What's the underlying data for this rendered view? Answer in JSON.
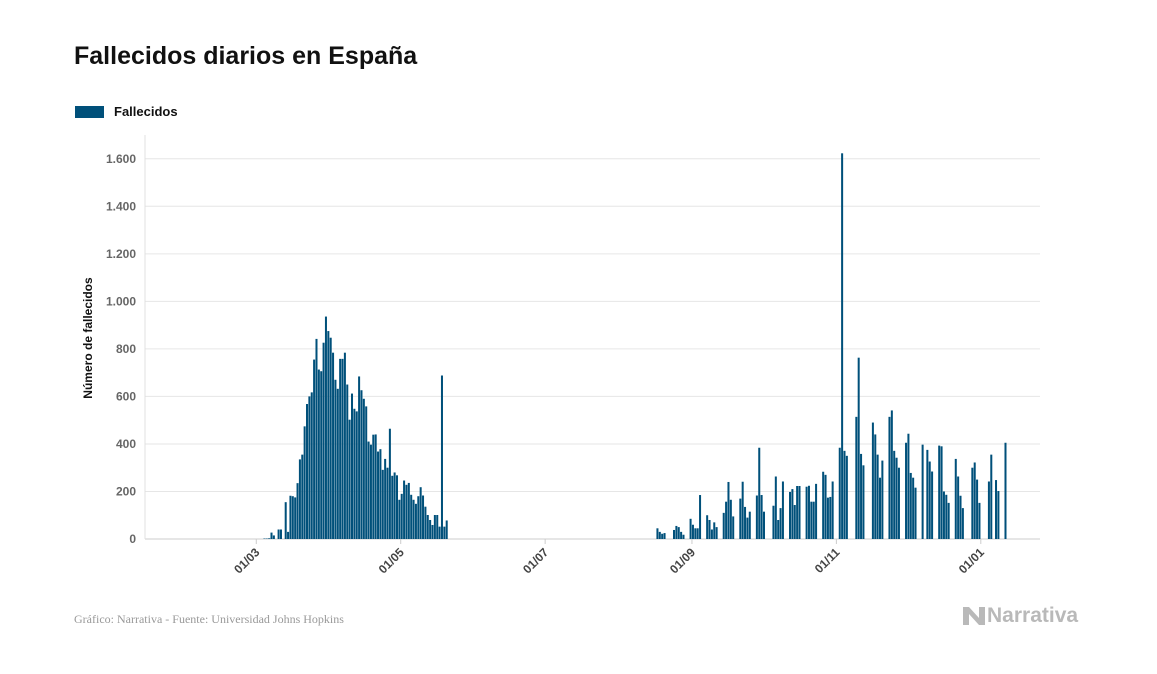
{
  "title": "Fallecidos diarios en España",
  "footer": "Gráfico: Narrativa - Fuente: Universidad Johns Hopkins",
  "logo_text": "Narrativa",
  "colors": {
    "bar": "#00507a",
    "grid": "#e6e6e6",
    "tick_text": "#666666",
    "logo": "#b9b9b9"
  },
  "chart_data": {
    "type": "bar",
    "title": "Fallecidos diarios en España",
    "ylabel": "Número de fallecidos",
    "xlabel": "",
    "ylim": [
      0,
      1700
    ],
    "xlim": [
      "2020-01-14",
      "2021-01-26"
    ],
    "grid": true,
    "legend_placement": "top-left",
    "yticks": [
      0,
      200,
      400,
      600,
      800,
      1000,
      1200,
      1400,
      1600
    ],
    "ytick_labels": [
      "0",
      "200",
      "400",
      "600",
      "800",
      "1.000",
      "1.200",
      "1.400",
      "1.600"
    ],
    "xticks": [
      "2020-03-01",
      "2020-05-01",
      "2020-07-01",
      "2020-09-01",
      "2020-11-01",
      "2021-01-01"
    ],
    "xtick_labels": [
      "01/03",
      "01/05",
      "01/07",
      "01/09",
      "01/11",
      "01/01"
    ],
    "series": [
      {
        "name": "Fallecidos",
        "points": [
          [
            "2020-03-04",
            2
          ],
          [
            "2020-03-05",
            2
          ],
          [
            "2020-03-06",
            3
          ],
          [
            "2020-03-07",
            27
          ],
          [
            "2020-03-08",
            15
          ],
          [
            "2020-03-10",
            40
          ],
          [
            "2020-03-11",
            40
          ],
          [
            "2020-03-13",
            155
          ],
          [
            "2020-03-14",
            30
          ],
          [
            "2020-03-15",
            182
          ],
          [
            "2020-03-16",
            180
          ],
          [
            "2020-03-17",
            175
          ],
          [
            "2020-03-18",
            235
          ],
          [
            "2020-03-19",
            335
          ],
          [
            "2020-03-20",
            355
          ],
          [
            "2020-03-21",
            474
          ],
          [
            "2020-03-22",
            568
          ],
          [
            "2020-03-23",
            600
          ],
          [
            "2020-03-24",
            617
          ],
          [
            "2020-03-25",
            755
          ],
          [
            "2020-03-26",
            842
          ],
          [
            "2020-03-27",
            713
          ],
          [
            "2020-03-28",
            706
          ],
          [
            "2020-03-29",
            826
          ],
          [
            "2020-03-30",
            936
          ],
          [
            "2020-03-31",
            875
          ],
          [
            "2020-04-01",
            847
          ],
          [
            "2020-04-02",
            784
          ],
          [
            "2020-04-03",
            670
          ],
          [
            "2020-04-04",
            632
          ],
          [
            "2020-04-05",
            758
          ],
          [
            "2020-04-06",
            758
          ],
          [
            "2020-04-07",
            784
          ],
          [
            "2020-04-08",
            650
          ],
          [
            "2020-04-09",
            502
          ],
          [
            "2020-04-10",
            612
          ],
          [
            "2020-04-11",
            548
          ],
          [
            "2020-04-12",
            537
          ],
          [
            "2020-04-13",
            684
          ],
          [
            "2020-04-14",
            626
          ],
          [
            "2020-04-15",
            590
          ],
          [
            "2020-04-16",
            558
          ],
          [
            "2020-04-17",
            410
          ],
          [
            "2020-04-18",
            397
          ],
          [
            "2020-04-19",
            439
          ],
          [
            "2020-04-20",
            440
          ],
          [
            "2020-04-21",
            368
          ],
          [
            "2020-04-22",
            378
          ],
          [
            "2020-04-23",
            291
          ],
          [
            "2020-04-24",
            337
          ],
          [
            "2020-04-25",
            300
          ],
          [
            "2020-04-26",
            464
          ],
          [
            "2020-04-27",
            266
          ],
          [
            "2020-04-28",
            280
          ],
          [
            "2020-04-29",
            268
          ],
          [
            "2020-04-30",
            165
          ],
          [
            "2020-05-01",
            190
          ],
          [
            "2020-05-02",
            246
          ],
          [
            "2020-05-03",
            228
          ],
          [
            "2020-05-04",
            236
          ],
          [
            "2020-05-05",
            186
          ],
          [
            "2020-05-06",
            165
          ],
          [
            "2020-05-07",
            148
          ],
          [
            "2020-05-08",
            180
          ],
          [
            "2020-05-09",
            218
          ],
          [
            "2020-05-10",
            183
          ],
          [
            "2020-05-11",
            136
          ],
          [
            "2020-05-12",
            101
          ],
          [
            "2020-05-13",
            80
          ],
          [
            "2020-05-14",
            59
          ],
          [
            "2020-05-15",
            101
          ],
          [
            "2020-05-16",
            101
          ],
          [
            "2020-05-17",
            52
          ],
          [
            "2020-05-18",
            688
          ],
          [
            "2020-05-19",
            52
          ],
          [
            "2020-05-20",
            78
          ],
          [
            "2020-08-17",
            45
          ],
          [
            "2020-08-18",
            30
          ],
          [
            "2020-08-19",
            22
          ],
          [
            "2020-08-20",
            25
          ],
          [
            "2020-08-24",
            38
          ],
          [
            "2020-08-25",
            55
          ],
          [
            "2020-08-26",
            50
          ],
          [
            "2020-08-27",
            30
          ],
          [
            "2020-08-28",
            18
          ],
          [
            "2020-08-31",
            85
          ],
          [
            "2020-09-01",
            60
          ],
          [
            "2020-09-02",
            45
          ],
          [
            "2020-09-03",
            45
          ],
          [
            "2020-09-04",
            185
          ],
          [
            "2020-09-07",
            100
          ],
          [
            "2020-09-08",
            80
          ],
          [
            "2020-09-09",
            40
          ],
          [
            "2020-09-10",
            70
          ],
          [
            "2020-09-11",
            50
          ],
          [
            "2020-09-14",
            110
          ],
          [
            "2020-09-15",
            157
          ],
          [
            "2020-09-16",
            240
          ],
          [
            "2020-09-17",
            165
          ],
          [
            "2020-09-18",
            95
          ],
          [
            "2020-09-21",
            170
          ],
          [
            "2020-09-22",
            241
          ],
          [
            "2020-09-23",
            135
          ],
          [
            "2020-09-24",
            90
          ],
          [
            "2020-09-25",
            115
          ],
          [
            "2020-09-28",
            183
          ],
          [
            "2020-09-29",
            384
          ],
          [
            "2020-09-30",
            185
          ],
          [
            "2020-10-01",
            115
          ],
          [
            "2020-10-05",
            140
          ],
          [
            "2020-10-06",
            263
          ],
          [
            "2020-10-07",
            80
          ],
          [
            "2020-10-08",
            130
          ],
          [
            "2020-10-09",
            242
          ],
          [
            "2020-10-12",
            198
          ],
          [
            "2020-10-13",
            210
          ],
          [
            "2020-10-14",
            143
          ],
          [
            "2020-10-15",
            223
          ],
          [
            "2020-10-16",
            223
          ],
          [
            "2020-10-19",
            220
          ],
          [
            "2020-10-20",
            224
          ],
          [
            "2020-10-21",
            157
          ],
          [
            "2020-10-22",
            157
          ],
          [
            "2020-10-23",
            232
          ],
          [
            "2020-10-26",
            283
          ],
          [
            "2020-10-27",
            270
          ],
          [
            "2020-10-28",
            174
          ],
          [
            "2020-10-29",
            177
          ],
          [
            "2020-10-30",
            242
          ],
          [
            "2020-11-02",
            384
          ],
          [
            "2020-11-03",
            1623
          ],
          [
            "2020-11-04",
            371
          ],
          [
            "2020-11-05",
            350
          ],
          [
            "2020-11-09",
            514
          ],
          [
            "2020-11-10",
            763
          ],
          [
            "2020-11-11",
            358
          ],
          [
            "2020-11-12",
            310
          ],
          [
            "2020-11-16",
            490
          ],
          [
            "2020-11-17",
            440
          ],
          [
            "2020-11-18",
            355
          ],
          [
            "2020-11-19",
            258
          ],
          [
            "2020-11-20",
            330
          ],
          [
            "2020-11-23",
            514
          ],
          [
            "2020-11-24",
            541
          ],
          [
            "2020-11-25",
            371
          ],
          [
            "2020-11-26",
            342
          ],
          [
            "2020-11-27",
            300
          ],
          [
            "2020-11-30",
            405
          ],
          [
            "2020-12-01",
            443
          ],
          [
            "2020-12-02",
            278
          ],
          [
            "2020-12-03",
            258
          ],
          [
            "2020-12-04",
            216
          ],
          [
            "2020-12-07",
            397
          ],
          [
            "2020-12-09",
            375
          ],
          [
            "2020-12-10",
            326
          ],
          [
            "2020-12-11",
            284
          ],
          [
            "2020-12-14",
            393
          ],
          [
            "2020-12-15",
            390
          ],
          [
            "2020-12-16",
            200
          ],
          [
            "2020-12-17",
            186
          ],
          [
            "2020-12-18",
            152
          ],
          [
            "2020-12-21",
            337
          ],
          [
            "2020-12-22",
            263
          ],
          [
            "2020-12-23",
            182
          ],
          [
            "2020-12-24",
            130
          ],
          [
            "2020-12-28",
            300
          ],
          [
            "2020-12-29",
            322
          ],
          [
            "2020-12-30",
            250
          ],
          [
            "2020-12-31",
            152
          ],
          [
            "2021-01-04",
            242
          ],
          [
            "2021-01-05",
            355
          ],
          [
            "2021-01-07",
            248
          ],
          [
            "2021-01-08",
            202
          ],
          [
            "2021-01-11",
            405
          ]
        ]
      }
    ]
  }
}
